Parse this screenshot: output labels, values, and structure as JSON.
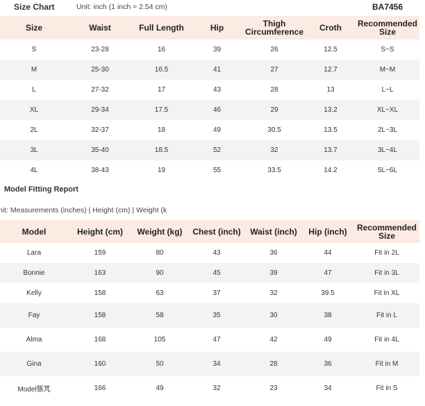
{
  "header": {
    "title": "Size Chart",
    "unit": "Unit: inch (1 inch = 2.54 cm)",
    "product_code": "BA7456"
  },
  "size_chart": {
    "columns": [
      "Size",
      "Waist",
      "Full Length",
      "Hip",
      "Thigh Circumference",
      "Croth",
      "Recommended Size"
    ],
    "rows": [
      [
        "S",
        "23-28",
        "16",
        "39",
        "26",
        "12.5",
        "S~S"
      ],
      [
        "M",
        "25-30",
        "16.5",
        "41",
        "27",
        "12.7",
        "M~M"
      ],
      [
        "L",
        "27-32",
        "17",
        "43",
        "28",
        "13",
        "L~L"
      ],
      [
        "XL",
        "29-34",
        "17.5",
        "46",
        "29",
        "13.2",
        "XL~XL"
      ],
      [
        "2L",
        "32-37",
        "18",
        "49",
        "30.5",
        "13.5",
        "2L~3L"
      ],
      [
        "3L",
        "35-40",
        "18.5",
        "52",
        "32",
        "13.7",
        "3L~4L"
      ],
      [
        "4L",
        "38-43",
        "19",
        "55",
        "33.5",
        "14.2",
        "5L~6L"
      ]
    ]
  },
  "model_report": {
    "title": "Model Fitting Report",
    "unit": "nit: Measurements (inches) | Height (cm) | Weight (k",
    "columns": [
      "Model",
      "Height (cm)",
      "Weight (kg)",
      "Chest (inch)",
      "Waist (inch)",
      "Hip (inch)",
      "Recommended Size"
    ],
    "rows": [
      [
        "Lara",
        "159",
        "80",
        "43",
        "36",
        "44",
        "Fit in 2L"
      ],
      [
        "Bonnie",
        "163",
        "90",
        "45",
        "39",
        "47",
        "Fit in 3L"
      ],
      [
        "Kelly",
        "158",
        "63",
        "37",
        "32",
        "39.5",
        "Fit in XL"
      ],
      [
        "Fay",
        "158",
        "58",
        "35",
        "30",
        "38",
        "Fit in L"
      ],
      [
        "Alma",
        "168",
        "105",
        "47",
        "42",
        "49",
        "Fit in 4L"
      ],
      [
        "Gina",
        "160",
        "50",
        "34",
        "28",
        "36",
        "Fit in M"
      ],
      [
        "Model張芃",
        "166",
        "49",
        "32",
        "23",
        "34",
        "Fit in S"
      ]
    ]
  }
}
